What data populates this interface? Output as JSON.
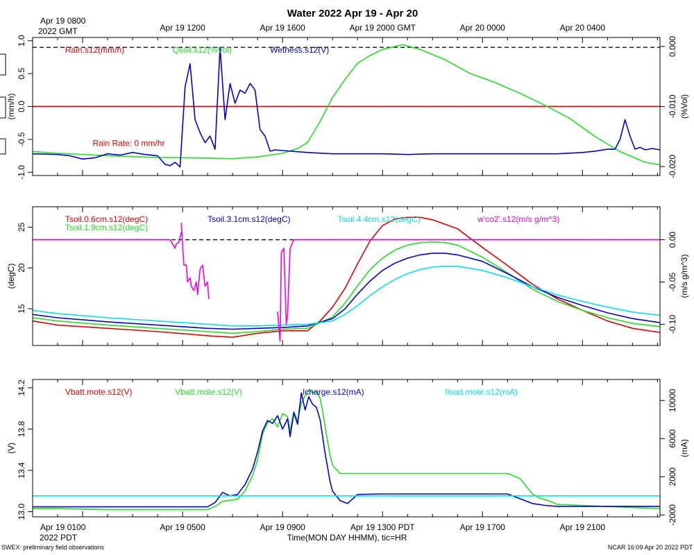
{
  "title": "Water 2022 Apr 19 - Apr 20",
  "top_axis": {
    "first_label_line1": "Apr 19 0800",
    "first_label_line2": "2022 GMT",
    "labels": [
      {
        "hour": 5,
        "text": "Apr 19 1200"
      },
      {
        "hour": 9,
        "text": "Apr 19 1600"
      },
      {
        "hour": 13,
        "text": "Apr 19 2000 GMT"
      },
      {
        "hour": 17,
        "text": "Apr 20 0000"
      },
      {
        "hour": 21,
        "text": "Apr 20 0400"
      }
    ]
  },
  "bottom_axis": {
    "first_label_line1": "Apr 19 0100",
    "first_label_line2": "2022 PDT",
    "labels": [
      {
        "hour": 5,
        "text": "Apr 19 0500"
      },
      {
        "hour": 9,
        "text": "Apr 19 0900"
      },
      {
        "hour": 13,
        "text": "Apr 19 1300 PDT"
      },
      {
        "hour": 17,
        "text": "Apr 19 1700"
      },
      {
        "hour": 21,
        "text": "Apr 19 2100"
      }
    ],
    "xlabel": "Time(MON DAY HHMM), tic=HR"
  },
  "footer": {
    "left": "SWEX: preliminary field observations",
    "right": "NCAR 16:09 Apr 20 2022 PDT"
  },
  "chart_data": [
    {
      "type": "line",
      "panel": "water",
      "xlim": [
        -1,
        24.1
      ],
      "ylim": [
        -1.05,
        1.05
      ],
      "ylabel": "(mm/h)",
      "yticks": [
        -1.0,
        -0.5,
        0.0,
        0.5,
        1.0
      ],
      "ytick_labels": [
        "-1.0",
        "-0.5",
        "0.0",
        "0.5",
        "1.0"
      ],
      "y2lim": [
        -0.0215,
        0.0015
      ],
      "y2label": "(%Vol)",
      "y2ticks": [
        -0.02,
        -0.01,
        0.0
      ],
      "y2tick_labels": [
        "-0.020",
        "-0.010",
        "0.000"
      ],
      "ref_lines": [
        {
          "axis": "y",
          "value": 0.9,
          "style": "dashed",
          "color": "#000000"
        },
        {
          "axis": "y",
          "value": 0.0,
          "style": "dashed",
          "color": "#000000"
        },
        {
          "axis": "y",
          "value": 0.0,
          "style": "solid",
          "color": "#e00000"
        }
      ],
      "legend": [
        {
          "text": "Rain.s12(mm/h)",
          "color": "#e00000",
          "x_hour": 0.3
        },
        {
          "text": "Qsoil.s12(%Vol)",
          "color": "#22dd22",
          "x_hour": 4.6
        },
        {
          "text": "Wetness.s12(V)",
          "color": "#0000cc",
          "x_hour": 8.5
        }
      ],
      "annotations": [
        {
          "text": "Rain Rate: 0 mm/hr",
          "color": "#e00000",
          "x_hour": 1.4,
          "y": -0.6
        }
      ],
      "series": [
        {
          "name": "Rain.s12(mm/h)",
          "color": "#e00000",
          "axis": "left",
          "x": [
            -1,
            24.1
          ],
          "y": [
            0,
            0
          ]
        },
        {
          "name": "Qsoil.s12(%Vol)",
          "color": "#22dd22",
          "axis": "right",
          "x": [
            -1,
            0,
            2,
            4,
            6,
            7,
            8,
            9,
            9.6,
            10,
            10.5,
            11,
            11.5,
            12,
            12.5,
            13,
            13.8,
            14.5,
            15.5,
            16.5,
            17.5,
            18.5,
            19.5,
            20.5,
            21.5,
            22.5,
            23.5,
            24.1
          ],
          "y": [
            -0.0175,
            -0.0178,
            -0.0182,
            -0.0185,
            -0.0186,
            -0.0187,
            -0.0184,
            -0.0178,
            -0.017,
            -0.016,
            -0.0125,
            -0.0085,
            -0.0055,
            -0.0028,
            -0.0015,
            -0.0005,
            0.0003,
            -0.0005,
            -0.0022,
            -0.0045,
            -0.006,
            -0.0078,
            -0.0098,
            -0.012,
            -0.015,
            -0.0175,
            -0.0193,
            -0.0197
          ]
        },
        {
          "name": "Wetness.s12(V)",
          "color": "#0000cc",
          "axis": "left",
          "x": [
            -1,
            0,
            0.5,
            1,
            1.5,
            2,
            2.5,
            3,
            3.5,
            4,
            4.3,
            4.5,
            4.7,
            4.9,
            5.1,
            5.3,
            5.5,
            5.7,
            5.9,
            6.1,
            6.3,
            6.5,
            6.7,
            6.9,
            7.1,
            7.3,
            7.5,
            7.7,
            7.9,
            8.1,
            8.3,
            8.5,
            8.7,
            9,
            10,
            11,
            12,
            13,
            14,
            15,
            16,
            17,
            18,
            19,
            20,
            21,
            21.5,
            22,
            22.3,
            22.5,
            22.7,
            22.9,
            23.1,
            23.3,
            23.5,
            23.8,
            24.1
          ],
          "y": [
            -0.72,
            -0.73,
            -0.75,
            -0.8,
            -0.78,
            -0.72,
            -0.74,
            -0.7,
            -0.73,
            -0.75,
            -0.88,
            -0.9,
            -0.85,
            -0.92,
            0.3,
            0.65,
            -0.2,
            -0.4,
            -0.55,
            -0.45,
            -0.65,
            0.9,
            -0.2,
            0.35,
            0.05,
            0.25,
            0.2,
            0.35,
            0.25,
            -0.35,
            -0.45,
            -0.68,
            -0.66,
            -0.67,
            -0.7,
            -0.72,
            -0.72,
            -0.72,
            -0.73,
            -0.72,
            -0.72,
            -0.72,
            -0.72,
            -0.72,
            -0.72,
            -0.7,
            -0.68,
            -0.65,
            -0.65,
            -0.5,
            -0.2,
            -0.45,
            -0.65,
            -0.62,
            -0.66,
            -0.64,
            -0.66
          ]
        }
      ]
    },
    {
      "type": "line",
      "panel": "soil-temperature",
      "xlim": [
        -1,
        24.1
      ],
      "ylim": [
        10.5,
        27.5
      ],
      "ylabel": "(degC)",
      "yticks": [
        15,
        20,
        25
      ],
      "ytick_labels": [
        "15",
        "20",
        "25"
      ],
      "y2lim": [
        -0.125,
        0.039
      ],
      "y2label": "(m/s g/m^3)",
      "y2ticks": [
        -0.1,
        -0.05,
        0.0
      ],
      "y2tick_labels": [
        "-0.10",
        "-0.05",
        "0.00"
      ],
      "ref_lines": [
        {
          "axis": "y2",
          "value": 0.0,
          "style": "dashed",
          "color": "#000000"
        }
      ],
      "legend": [
        {
          "text": "Tsoil.0.6cm.s12(degC)",
          "color": "#e00000",
          "x_hour": 0.3,
          "row": 0
        },
        {
          "text": "Tsoil.1.9cm.s12(degC)",
          "color": "#22dd22",
          "x_hour": 0.3,
          "row": 1
        },
        {
          "text": "Tsoil.3.1cm.s12(degC)",
          "color": "#0000cc",
          "x_hour": 6.0,
          "row": 0
        },
        {
          "text": "Tsoil.4.4cm.s12(degC)",
          "color": "#00e0ee",
          "x_hour": 11.2,
          "row": 0
        },
        {
          "text": "w'co2'.s12(m/s g/m^3)",
          "color": "#ee00ee",
          "x_hour": 16.8,
          "row": 0
        }
      ],
      "series": [
        {
          "name": "Tsoil.0.6cm.s12(degC)",
          "color": "#e00000",
          "axis": "left",
          "x": [
            -1,
            0,
            2,
            4,
            6,
            7,
            8,
            9,
            10,
            10.5,
            11,
            11.5,
            12,
            12.5,
            13,
            13.5,
            14,
            14.5,
            15,
            16,
            17,
            18,
            19,
            20,
            21,
            22,
            23,
            24.1
          ],
          "y": [
            13.5,
            13.0,
            12.6,
            12.2,
            11.7,
            11.5,
            12.0,
            12.3,
            12.3,
            13.5,
            15.2,
            17.5,
            20.5,
            23.3,
            25.2,
            26.0,
            26.2,
            26.2,
            25.9,
            24.8,
            22.5,
            20.3,
            18.0,
            16.2,
            14.8,
            13.5,
            12.6,
            12.1
          ]
        },
        {
          "name": "Tsoil.1.9cm.s12(degC)",
          "color": "#22dd22",
          "axis": "left",
          "x": [
            -1,
            0,
            2,
            4,
            6,
            7,
            8,
            9,
            10,
            11,
            11.5,
            12,
            12.5,
            13,
            13.5,
            14,
            14.5,
            15,
            15.5,
            16,
            17,
            18,
            19,
            20,
            21,
            22,
            23,
            24.1
          ],
          "y": [
            13.9,
            13.5,
            13.0,
            12.6,
            12.2,
            12.0,
            12.2,
            12.5,
            12.6,
            14.0,
            15.7,
            17.8,
            19.8,
            21.2,
            22.2,
            22.8,
            23.1,
            23.2,
            23.1,
            22.8,
            21.3,
            19.4,
            17.4,
            15.9,
            14.8,
            13.9,
            13.2,
            12.8
          ]
        },
        {
          "name": "Tsoil.3.1cm.s12(degC)",
          "color": "#0000cc",
          "axis": "left",
          "x": [
            -1,
            0,
            2,
            4,
            6,
            7,
            8,
            9,
            10,
            11,
            11.5,
            12,
            12.5,
            13,
            13.5,
            14,
            14.5,
            15,
            15.5,
            16,
            17,
            18,
            19,
            20,
            21,
            22,
            23,
            24.1
          ],
          "y": [
            14.3,
            13.9,
            13.4,
            13.0,
            12.6,
            12.5,
            12.6,
            12.7,
            12.9,
            13.8,
            15.0,
            16.8,
            18.4,
            19.7,
            20.6,
            21.2,
            21.6,
            21.8,
            21.8,
            21.6,
            20.8,
            19.3,
            17.7,
            16.4,
            15.4,
            14.5,
            13.8,
            13.3
          ]
        },
        {
          "name": "Tsoil.4.4cm.s12(degC)",
          "color": "#00e0ee",
          "axis": "left",
          "x": [
            -1,
            0,
            2,
            4,
            6,
            7,
            8,
            9,
            10,
            11,
            11.5,
            12,
            12.5,
            13,
            13.5,
            14,
            14.5,
            15,
            15.5,
            16,
            17,
            18,
            19,
            20,
            21,
            22,
            23,
            24.1
          ],
          "y": [
            14.8,
            14.4,
            13.9,
            13.5,
            13.1,
            12.9,
            12.9,
            13.0,
            13.1,
            13.5,
            14.3,
            15.4,
            16.6,
            17.7,
            18.6,
            19.3,
            19.8,
            20.1,
            20.2,
            20.2,
            19.7,
            18.8,
            17.7,
            16.7,
            15.9,
            15.2,
            14.6,
            14.2
          ]
        },
        {
          "name": "w'co2'.s12(m/s g/m^3)",
          "color": "#ee00ee",
          "axis": "right",
          "segments": [
            {
              "x": [
                4.5,
                4.7,
                4.75,
                4.85,
                4.95
              ],
              "y": [
                0.0,
                -0.01,
                -0.005,
                -0.003,
                0.009
              ]
            },
            {
              "x": [
                4.95,
                5.05,
                5.15,
                5.2,
                5.3,
                5.35,
                5.45,
                5.55,
                5.6,
                5.7,
                5.8,
                5.9,
                6.0,
                6.05
              ],
              "y": [
                0.02,
                -0.03,
                -0.03,
                -0.05,
                -0.045,
                -0.055,
                -0.06,
                -0.05,
                -0.065,
                -0.035,
                -0.03,
                -0.055,
                -0.05,
                -0.07
              ]
            },
            {
              "x": [
                8.8,
                8.9,
                8.95,
                9.05,
                9.15,
                9.2,
                9.3,
                9.45,
                9.6
              ],
              "y": [
                -0.085,
                -0.12,
                -0.015,
                -0.01,
                -0.1,
                -0.09,
                -0.01,
                0.0,
                0.0
              ]
            },
            {
              "x": [
                -1,
                4.5
              ],
              "y": [
                0.0,
                0.0
              ]
            },
            {
              "x": [
                9.6,
                24.1
              ],
              "y": [
                0.0,
                0.0
              ]
            }
          ]
        }
      ]
    },
    {
      "type": "line",
      "panel": "power",
      "xlim": [
        -1,
        24.1
      ],
      "ylim": [
        12.95,
        14.28
      ],
      "ylabel": "(V)",
      "yticks": [
        13.0,
        13.4,
        13.8,
        14.2
      ],
      "ytick_labels": [
        "13.0",
        "13.4",
        "13.8",
        "14.2"
      ],
      "y2lim": [
        -2200,
        12200
      ],
      "y2label": "(mA)",
      "y2ticks": [
        -2000,
        2000,
        6000,
        10000
      ],
      "y2tick_labels": [
        "-2000",
        "2000",
        "6000",
        "10000"
      ],
      "ref_lines": [
        {
          "axis": "y2",
          "value": 0,
          "style": "dashed",
          "color": "#000000"
        }
      ],
      "legend": [
        {
          "text": "Vbatt.mote.s12(V)",
          "color": "#e00000",
          "x_hour": 0.3
        },
        {
          "text": "Vbatt.mote.s12(V)",
          "color": "#22dd22",
          "x_hour": 4.7
        },
        {
          "text": "Icharge.s12(mA)",
          "color": "#0000cc",
          "x_hour": 9.8
        },
        {
          "text": "Iload.mote.s12(mA)",
          "color": "#00e0ee",
          "x_hour": 15.5
        }
      ],
      "series": [
        {
          "name": "Vbatt.mote.s12(V)",
          "color": "#22dd22",
          "axis": "left",
          "x": [
            -1,
            0,
            2,
            4,
            5,
            6,
            6.3,
            6.6,
            6.9,
            7.2,
            7.5,
            7.8,
            8.0,
            8.2,
            8.4,
            8.6,
            8.8,
            9.0,
            9.2,
            9.3,
            9.45,
            9.6,
            9.75,
            9.9,
            10.05,
            10.2,
            10.35,
            10.5,
            10.6,
            10.75,
            10.9,
            11.0,
            11.3,
            11.6,
            12,
            13,
            14,
            15,
            16,
            17,
            18,
            18.5,
            19,
            19.3,
            19.6,
            20,
            21,
            22,
            23,
            24.1
          ],
          "y": [
            13.03,
            13.03,
            13.02,
            13.02,
            13.02,
            13.02,
            13.05,
            13.1,
            13.11,
            13.12,
            13.2,
            13.35,
            13.5,
            13.75,
            13.86,
            13.9,
            13.82,
            13.95,
            13.92,
            13.78,
            13.97,
            13.88,
            14.05,
            14.12,
            14.18,
            14.15,
            14.17,
            14.1,
            13.98,
            13.75,
            13.55,
            13.45,
            13.37,
            13.37,
            13.37,
            13.37,
            13.37,
            13.37,
            13.37,
            13.37,
            13.37,
            13.32,
            13.17,
            13.13,
            13.11,
            13.07,
            13.06,
            13.05,
            13.04,
            13.03
          ]
        },
        {
          "name": "Icharge.s12(mA)",
          "color": "#0000cc",
          "axis": "right",
          "x": [
            -1,
            0,
            2,
            4,
            6,
            6.3,
            6.6,
            6.9,
            7.2,
            7.5,
            7.8,
            8.0,
            8.2,
            8.4,
            8.6,
            8.8,
            9.0,
            9.2,
            9.3,
            9.45,
            9.6,
            9.75,
            9.9,
            10.05,
            10.2,
            10.35,
            10.5,
            10.7,
            10.9,
            11.0,
            11.3,
            11.6,
            12,
            13,
            14,
            15,
            16,
            17,
            18,
            18.5,
            19,
            19.5,
            20,
            21,
            22,
            23,
            24.1
          ],
          "y": [
            -1150,
            -1150,
            -1150,
            -1150,
            -1150,
            -700,
            350,
            0,
            150,
            1200,
            2800,
            4600,
            6800,
            7900,
            7600,
            8400,
            7000,
            8100,
            6200,
            8700,
            7500,
            10800,
            9000,
            10400,
            9600,
            9300,
            8000,
            4500,
            1500,
            500,
            -500,
            -800,
            150,
            200,
            200,
            200,
            200,
            200,
            200,
            -300,
            -800,
            -1000,
            -1100,
            -1100,
            -1100,
            -1100,
            -1100
          ]
        },
        {
          "name": "Iload.mote.s12(mA)",
          "color": "#00e0ee",
          "axis": "right",
          "x": [
            -1,
            24.1
          ],
          "y": [
            0,
            0
          ]
        }
      ]
    }
  ]
}
